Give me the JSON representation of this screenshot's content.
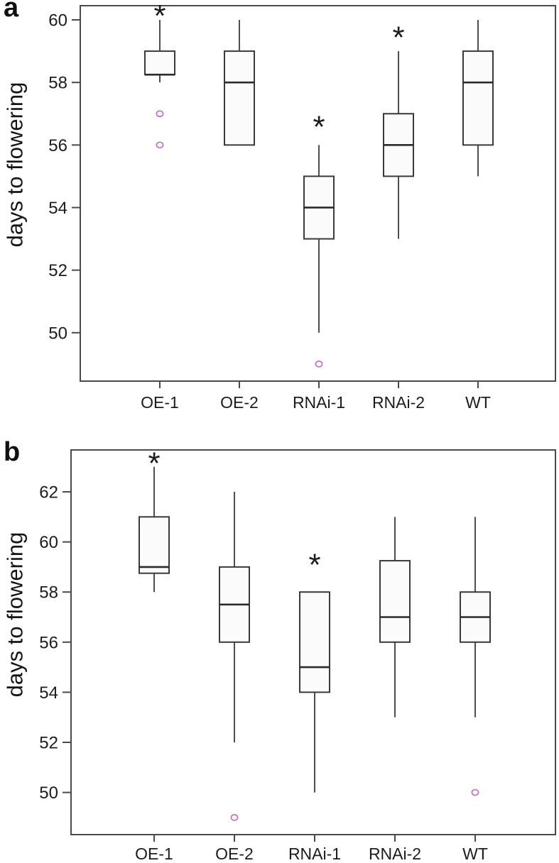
{
  "annotations": {
    "significance_marker": "*"
  },
  "colors": {
    "line": "#3a3a3a",
    "frame": "#4a4a4a",
    "median": "#2b2b2b",
    "box_fill": "#fbfbfb",
    "outlier": "#c36fc3",
    "text": "#1c1c1c"
  },
  "chart_data": [
    {
      "type": "boxplot",
      "panel_label": "a",
      "title": "",
      "xlabel": "",
      "ylabel": "days to flowering",
      "categories": [
        "OE-1",
        "OE-2",
        "RNAi-1",
        "RNAi-2",
        "WT"
      ],
      "yticks": [
        50,
        52,
        54,
        56,
        58,
        60
      ],
      "ylim": [
        48.45,
        60.45
      ],
      "grid": false,
      "series": [
        {
          "name": "OE-1",
          "min": 58,
          "q1": 58.25,
          "median": 58.25,
          "q3": 59,
          "max": 60,
          "outliers": [
            57,
            56
          ],
          "significant": true,
          "sig_y": 60.3
        },
        {
          "name": "OE-2",
          "min": 56,
          "q1": 56,
          "median": 58,
          "q3": 59,
          "max": 60,
          "outliers": [],
          "significant": false
        },
        {
          "name": "RNAi-1",
          "min": 50,
          "q1": 53,
          "median": 54,
          "q3": 55,
          "max": 56,
          "outliers": [
            49
          ],
          "significant": true,
          "sig_y": 56.75
        },
        {
          "name": "RNAi-2",
          "min": 53,
          "q1": 55,
          "median": 56,
          "q3": 57,
          "max": 59,
          "outliers": [],
          "significant": true,
          "sig_y": 59.6
        },
        {
          "name": "WT",
          "min": 55,
          "q1": 56,
          "median": 58,
          "q3": 59,
          "max": 60,
          "outliers": [],
          "significant": false
        }
      ]
    },
    {
      "type": "boxplot",
      "panel_label": "b",
      "title": "",
      "xlabel": "",
      "ylabel": "days to flowering",
      "categories": [
        "OE-1",
        "OE-2",
        "RNAi-1",
        "RNAi-2",
        "WT"
      ],
      "yticks": [
        50,
        52,
        54,
        56,
        58,
        60,
        62
      ],
      "ylim": [
        48.3,
        63.65
      ],
      "grid": false,
      "series": [
        {
          "name": "OE-1",
          "min": 58,
          "q1": 58.75,
          "median": 59,
          "q3": 61,
          "max": 63,
          "outliers": [],
          "significant": true,
          "sig_y": 63.35
        },
        {
          "name": "OE-2",
          "min": 52,
          "q1": 56,
          "median": 57.5,
          "q3": 59,
          "max": 62,
          "outliers": [
            49
          ],
          "significant": false
        },
        {
          "name": "RNAi-1",
          "min": 50,
          "q1": 54,
          "median": 55,
          "q3": 58,
          "max": 58,
          "outliers": [],
          "significant": true,
          "sig_y": 59.3
        },
        {
          "name": "RNAi-2",
          "min": 53,
          "q1": 56,
          "median": 57,
          "q3": 59.25,
          "max": 61,
          "outliers": [],
          "significant": false
        },
        {
          "name": "WT",
          "min": 53,
          "q1": 56,
          "median": 57,
          "q3": 58,
          "max": 61,
          "outliers": [
            50
          ],
          "significant": false
        }
      ]
    }
  ]
}
